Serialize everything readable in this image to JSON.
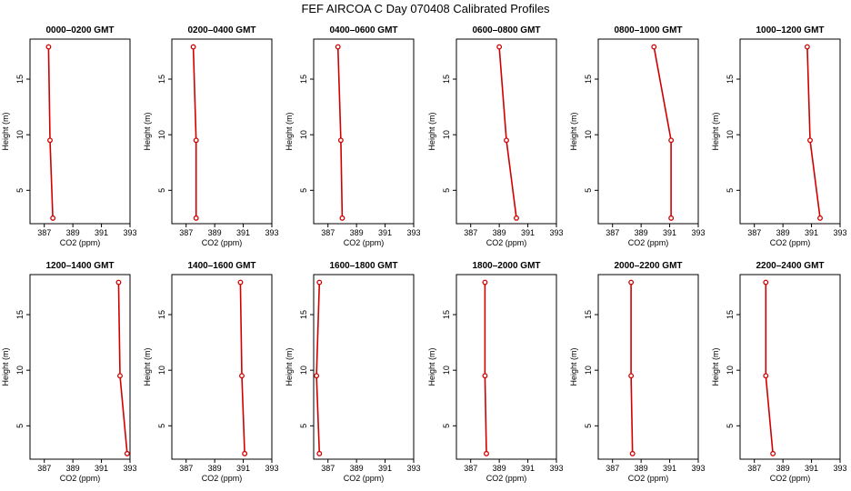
{
  "figure_title": "FEF AIRCOA C  Day 070408  Calibrated Profiles",
  "chart_data": [
    {
      "type": "line",
      "title": "0000–0200 GMT",
      "xlabel": "CO2 (ppm)",
      "ylabel": "Height (m)",
      "xlim": [
        386,
        393
      ],
      "ylim": [
        2,
        18.6
      ],
      "x_ticks": [
        387,
        389,
        391,
        393
      ],
      "y_ticks": [
        5,
        10,
        15
      ],
      "x": [
        387.3,
        387.4,
        387.6
      ],
      "y": [
        17.9,
        9.5,
        2.5
      ],
      "color": "#d00000"
    },
    {
      "type": "line",
      "title": "0200–0400 GMT",
      "xlabel": "CO2 (ppm)",
      "ylabel": "Height (m)",
      "xlim": [
        386,
        393
      ],
      "ylim": [
        2,
        18.6
      ],
      "x_ticks": [
        387,
        389,
        391,
        393
      ],
      "y_ticks": [
        5,
        10,
        15
      ],
      "x": [
        387.5,
        387.7,
        387.7
      ],
      "y": [
        17.9,
        9.5,
        2.5
      ],
      "color": "#d00000"
    },
    {
      "type": "line",
      "title": "0400–0600 GMT",
      "xlabel": "CO2 (ppm)",
      "ylabel": "Height (m)",
      "xlim": [
        386,
        393
      ],
      "ylim": [
        2,
        18.6
      ],
      "x_ticks": [
        387,
        389,
        391,
        393
      ],
      "y_ticks": [
        5,
        10,
        15
      ],
      "x": [
        387.7,
        387.9,
        388.0
      ],
      "y": [
        17.9,
        9.5,
        2.5
      ],
      "color": "#d00000"
    },
    {
      "type": "line",
      "title": "0600–0800 GMT",
      "xlabel": "CO2 (ppm)",
      "ylabel": "Height (m)",
      "xlim": [
        386,
        393
      ],
      "ylim": [
        2,
        18.6
      ],
      "x_ticks": [
        387,
        389,
        391,
        393
      ],
      "y_ticks": [
        5,
        10,
        15
      ],
      "x": [
        389.0,
        389.5,
        390.2
      ],
      "y": [
        17.9,
        9.5,
        2.5
      ],
      "color": "#d00000"
    },
    {
      "type": "line",
      "title": "0800–1000 GMT",
      "xlabel": "CO2 (ppm)",
      "ylabel": "Height (m)",
      "xlim": [
        386,
        393
      ],
      "ylim": [
        2,
        18.6
      ],
      "x_ticks": [
        387,
        389,
        391,
        393
      ],
      "y_ticks": [
        5,
        10,
        15
      ],
      "x": [
        389.9,
        391.1,
        391.1
      ],
      "y": [
        17.9,
        9.5,
        2.5
      ],
      "color": "#d00000"
    },
    {
      "type": "line",
      "title": "1000–1200 GMT",
      "xlabel": "CO2 (ppm)",
      "ylabel": "Height (m)",
      "xlim": [
        386,
        393
      ],
      "ylim": [
        2,
        18.6
      ],
      "x_ticks": [
        387,
        389,
        391,
        393
      ],
      "y_ticks": [
        5,
        10,
        15
      ],
      "x": [
        390.7,
        390.9,
        391.6
      ],
      "y": [
        17.9,
        9.5,
        2.5
      ],
      "color": "#d00000"
    },
    {
      "type": "line",
      "title": "1200–1400 GMT",
      "xlabel": "CO2 (ppm)",
      "ylabel": "Height (m)",
      "xlim": [
        386,
        393
      ],
      "ylim": [
        2,
        18.6
      ],
      "x_ticks": [
        387,
        389,
        391,
        393
      ],
      "y_ticks": [
        5,
        10,
        15
      ],
      "x": [
        392.2,
        392.3,
        392.8
      ],
      "y": [
        17.9,
        9.5,
        2.5
      ],
      "color": "#d00000"
    },
    {
      "type": "line",
      "title": "1400–1600 GMT",
      "xlabel": "CO2 (ppm)",
      "ylabel": "Height (m)",
      "xlim": [
        386,
        393
      ],
      "ylim": [
        2,
        18.6
      ],
      "x_ticks": [
        387,
        389,
        391,
        393
      ],
      "y_ticks": [
        5,
        10,
        15
      ],
      "x": [
        390.8,
        390.9,
        391.1
      ],
      "y": [
        17.9,
        9.5,
        2.5
      ],
      "color": "#d00000"
    },
    {
      "type": "line",
      "title": "1600–1800 GMT",
      "xlabel": "CO2 (ppm)",
      "ylabel": "Height (m)",
      "xlim": [
        386,
        393
      ],
      "ylim": [
        2,
        18.6
      ],
      "x_ticks": [
        387,
        389,
        391,
        393
      ],
      "y_ticks": [
        5,
        10,
        15
      ],
      "x": [
        386.4,
        386.2,
        386.4
      ],
      "y": [
        17.9,
        9.5,
        2.5
      ],
      "color": "#d00000"
    },
    {
      "type": "line",
      "title": "1800–2000 GMT",
      "xlabel": "CO2 (ppm)",
      "ylabel": "Height (m)",
      "xlim": [
        386,
        393
      ],
      "ylim": [
        2,
        18.6
      ],
      "x_ticks": [
        387,
        389,
        391,
        393
      ],
      "y_ticks": [
        5,
        10,
        15
      ],
      "x": [
        388.0,
        388.0,
        388.1
      ],
      "y": [
        17.9,
        9.5,
        2.5
      ],
      "color": "#d00000"
    },
    {
      "type": "line",
      "title": "2000–2200 GMT",
      "xlabel": "CO2 (ppm)",
      "ylabel": "Height (m)",
      "xlim": [
        386,
        393
      ],
      "ylim": [
        2,
        18.6
      ],
      "x_ticks": [
        387,
        389,
        391,
        393
      ],
      "y_ticks": [
        5,
        10,
        15
      ],
      "x": [
        388.3,
        388.3,
        388.4
      ],
      "y": [
        17.9,
        9.5,
        2.5
      ],
      "color": "#d00000"
    },
    {
      "type": "line",
      "title": "2200–2400 GMT",
      "xlabel": "CO2 (ppm)",
      "ylabel": "Height (m)",
      "xlim": [
        386,
        393
      ],
      "ylim": [
        2,
        18.6
      ],
      "x_ticks": [
        387,
        389,
        391,
        393
      ],
      "y_ticks": [
        5,
        10,
        15
      ],
      "x": [
        387.8,
        387.8,
        388.3
      ],
      "y": [
        17.9,
        9.5,
        2.5
      ],
      "color": "#d00000"
    }
  ]
}
